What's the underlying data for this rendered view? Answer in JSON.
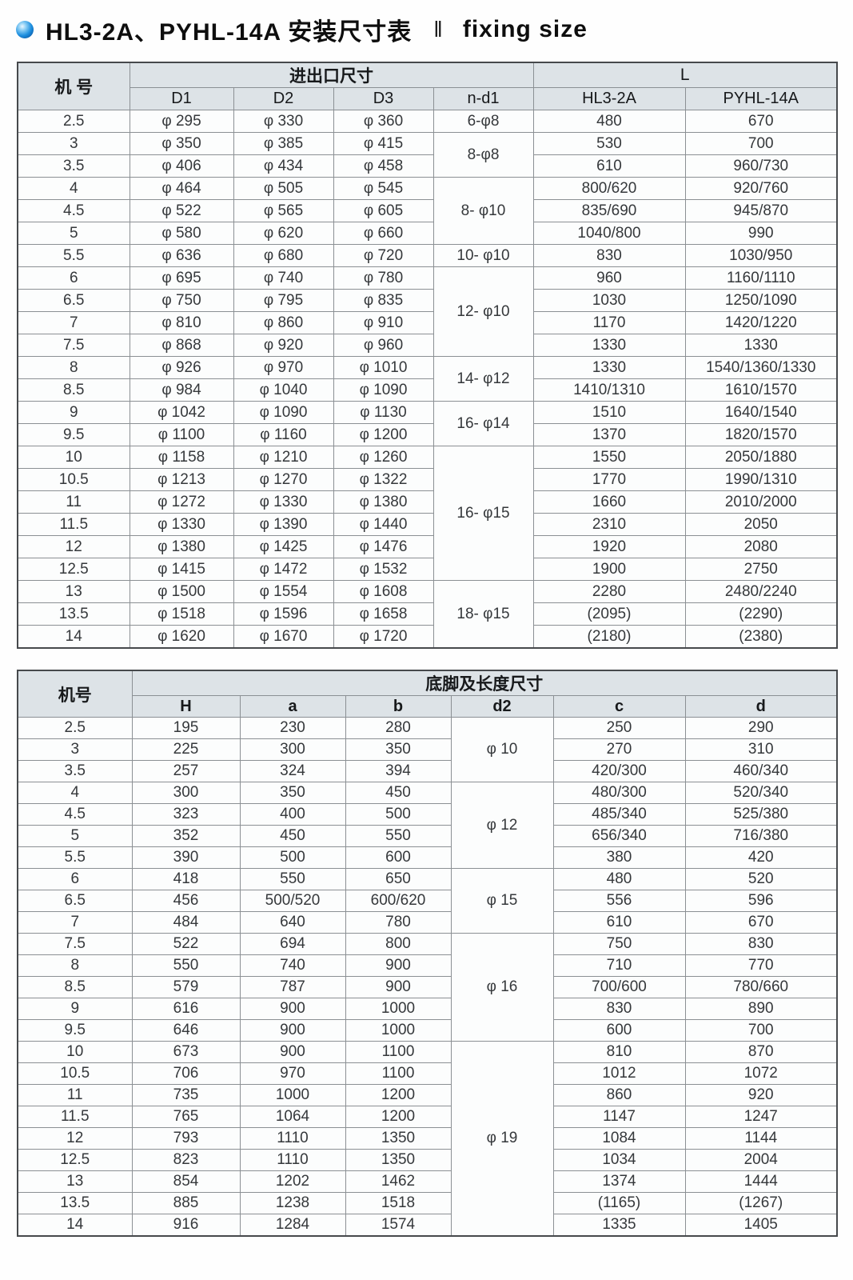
{
  "page": {
    "title_zh": "HL3-2A、PYHL-14A 安装尺寸表",
    "title_divider": "‖",
    "title_en": "fixing size",
    "accent_color": "#1e90e0",
    "header_bg_color": "#dde3e7"
  },
  "table1": {
    "machine_header": "机 号",
    "group_inout": "进出口尺寸",
    "group_l": "L",
    "sub_cols": [
      "D1",
      "D2",
      "D3",
      "n-d1",
      "HL3-2A",
      "PYHL-14A"
    ],
    "nd1_groups": [
      {
        "label": "6-φ8",
        "span": 1
      },
      {
        "label": "8-φ8",
        "span": 2
      },
      {
        "label": "8- φ10",
        "span": 3
      },
      {
        "label": "10- φ10",
        "span": 1
      },
      {
        "label": "12- φ10",
        "span": 4
      },
      {
        "label": "14- φ12",
        "span": 2
      },
      {
        "label": "16- φ14",
        "span": 2
      },
      {
        "label": "16- φ15",
        "span": 6
      },
      {
        "label": "18- φ15",
        "span": 3
      }
    ],
    "rows": [
      [
        "2.5",
        "φ 295",
        "φ 330",
        "φ 360",
        "480",
        "670"
      ],
      [
        "3",
        "φ 350",
        "φ 385",
        "φ 415",
        "530",
        "700"
      ],
      [
        "3.5",
        "φ 406",
        "φ 434",
        "φ 458",
        "610",
        "960/730"
      ],
      [
        "4",
        "φ 464",
        "φ 505",
        "φ 545",
        "800/620",
        "920/760"
      ],
      [
        "4.5",
        "φ 522",
        "φ 565",
        "φ 605",
        "835/690",
        "945/870"
      ],
      [
        "5",
        "φ 580",
        "φ 620",
        "φ 660",
        "1040/800",
        "990"
      ],
      [
        "5.5",
        "φ 636",
        "φ 680",
        "φ 720",
        "830",
        "1030/950"
      ],
      [
        "6",
        "φ 695",
        "φ 740",
        "φ 780",
        "960",
        "1160/1110"
      ],
      [
        "6.5",
        "φ 750",
        "φ 795",
        "φ 835",
        "1030",
        "1250/1090"
      ],
      [
        "7",
        "φ 810",
        "φ 860",
        "φ 910",
        "1170",
        "1420/1220"
      ],
      [
        "7.5",
        "φ 868",
        "φ 920",
        "φ 960",
        "1330",
        "1330"
      ],
      [
        "8",
        "φ 926",
        "φ 970",
        "φ 1010",
        "1330",
        "1540/1360/1330"
      ],
      [
        "8.5",
        "φ 984",
        "φ 1040",
        "φ 1090",
        "1410/1310",
        "1610/1570"
      ],
      [
        "9",
        "φ 1042",
        "φ 1090",
        "φ 1130",
        "1510",
        "1640/1540"
      ],
      [
        "9.5",
        "φ 1100",
        "φ 1160",
        "φ 1200",
        "1370",
        "1820/1570"
      ],
      [
        "10",
        "φ 1158",
        "φ 1210",
        "φ 1260",
        "1550",
        "2050/1880"
      ],
      [
        "10.5",
        "φ 1213",
        "φ 1270",
        "φ 1322",
        "1770",
        "1990/1310"
      ],
      [
        "11",
        "φ 1272",
        "φ 1330",
        "φ 1380",
        "1660",
        "2010/2000"
      ],
      [
        "11.5",
        "φ 1330",
        "φ 1390",
        "φ 1440",
        "2310",
        "2050"
      ],
      [
        "12",
        "φ 1380",
        "φ 1425",
        "φ 1476",
        "1920",
        "2080"
      ],
      [
        "12.5",
        "φ 1415",
        "φ 1472",
        "φ 1532",
        "1900",
        "2750"
      ],
      [
        "13",
        "φ 1500",
        "φ 1554",
        "φ 1608",
        "2280",
        "2480/2240"
      ],
      [
        "13.5",
        "φ 1518",
        "φ 1596",
        "φ 1658",
        "(2095)",
        "(2290)"
      ],
      [
        "14",
        "φ 1620",
        "φ 1670",
        "φ 1720",
        "(2180)",
        "(2380)"
      ]
    ]
  },
  "table2": {
    "machine_header": "机号",
    "group_foot": "底脚及长度尺寸",
    "sub_cols": [
      "H",
      "a",
      "b",
      "d2",
      "c",
      "d"
    ],
    "d2_groups": [
      {
        "label": "φ 10",
        "span": 3
      },
      {
        "label": "φ 12",
        "span": 4
      },
      {
        "label": "φ 15",
        "span": 3
      },
      {
        "label": "φ 16",
        "span": 5
      },
      {
        "label": "φ 19",
        "span": 9
      }
    ],
    "rows": [
      [
        "2.5",
        "195",
        "230",
        "280",
        "250",
        "290"
      ],
      [
        "3",
        "225",
        "300",
        "350",
        "270",
        "310"
      ],
      [
        "3.5",
        "257",
        "324",
        "394",
        "420/300",
        "460/340"
      ],
      [
        "4",
        "300",
        "350",
        "450",
        "480/300",
        "520/340"
      ],
      [
        "4.5",
        "323",
        "400",
        "500",
        "485/340",
        "525/380"
      ],
      [
        "5",
        "352",
        "450",
        "550",
        "656/340",
        "716/380"
      ],
      [
        "5.5",
        "390",
        "500",
        "600",
        "380",
        "420"
      ],
      [
        "6",
        "418",
        "550",
        "650",
        "480",
        "520"
      ],
      [
        "6.5",
        "456",
        "500/520",
        "600/620",
        "556",
        "596"
      ],
      [
        "7",
        "484",
        "640",
        "780",
        "610",
        "670"
      ],
      [
        "7.5",
        "522",
        "694",
        "800",
        "750",
        "830"
      ],
      [
        "8",
        "550",
        "740",
        "900",
        "710",
        "770"
      ],
      [
        "8.5",
        "579",
        "787",
        "900",
        "700/600",
        "780/660"
      ],
      [
        "9",
        "616",
        "900",
        "1000",
        "830",
        "890"
      ],
      [
        "9.5",
        "646",
        "900",
        "1000",
        "600",
        "700"
      ],
      [
        "10",
        "673",
        "900",
        "1100",
        "810",
        "870"
      ],
      [
        "10.5",
        "706",
        "970",
        "1100",
        "1012",
        "1072"
      ],
      [
        "11",
        "735",
        "1000",
        "1200",
        "860",
        "920"
      ],
      [
        "11.5",
        "765",
        "1064",
        "1200",
        "1147",
        "1247"
      ],
      [
        "12",
        "793",
        "1110",
        "1350",
        "1084",
        "1144"
      ],
      [
        "12.5",
        "823",
        "1110",
        "1350",
        "1034",
        "2004"
      ],
      [
        "13",
        "854",
        "1202",
        "1462",
        "1374",
        "1444"
      ],
      [
        "13.5",
        "885",
        "1238",
        "1518",
        "(1165)",
        "(1267)"
      ],
      [
        "14",
        "916",
        "1284",
        "1574",
        "1335",
        "1405"
      ]
    ]
  }
}
